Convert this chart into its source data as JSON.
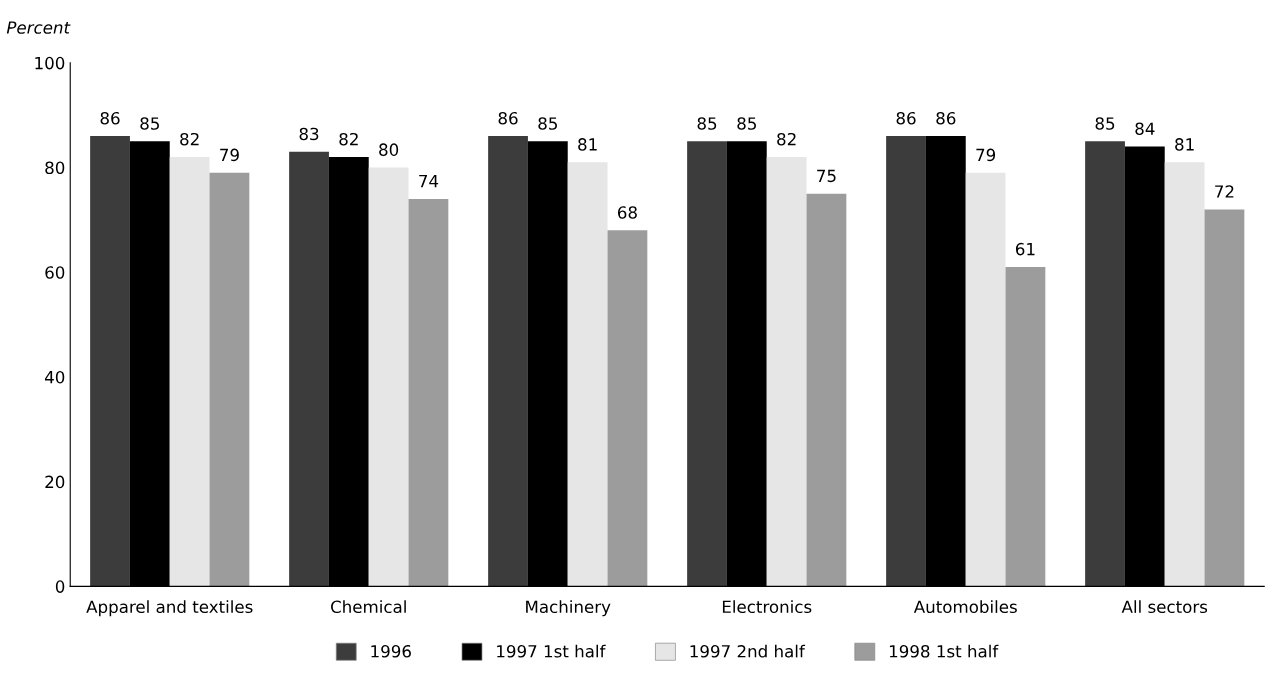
{
  "chart_data": {
    "type": "bar",
    "ylabel": "Percent",
    "categories": [
      "Apparel and textiles",
      "Chemical",
      "Machinery",
      "Electronics",
      "Automobiles",
      "All sectors"
    ],
    "series": [
      {
        "name": "1996",
        "color": "#3c3c3c",
        "values": [
          86,
          83,
          86,
          85,
          86,
          85
        ]
      },
      {
        "name": "1997 1st half",
        "color": "#000000",
        "values": [
          85,
          82,
          85,
          85,
          86,
          84
        ]
      },
      {
        "name": "1997 2nd half",
        "color": "#e6e6e6",
        "values": [
          82,
          80,
          81,
          82,
          79,
          81
        ]
      },
      {
        "name": "1998 1st half",
        "color": "#9c9c9c",
        "values": [
          79,
          74,
          68,
          75,
          61,
          72
        ]
      }
    ],
    "ylim": [
      0,
      100
    ],
    "yticks": [
      0,
      20,
      40,
      60,
      80,
      100
    ],
    "grid": false,
    "legend": "bottom",
    "data_labels": true
  }
}
